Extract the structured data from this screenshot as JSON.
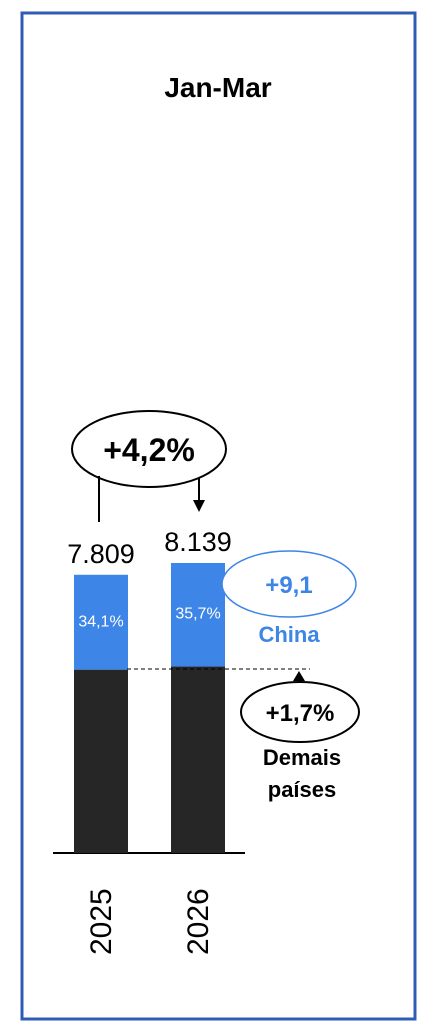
{
  "chart_data": {
    "type": "bar",
    "title": "Jan-Mar",
    "categories": [
      "2025",
      "2026"
    ],
    "totals": [
      7809,
      8139
    ],
    "total_labels": [
      "7.809",
      "8.139"
    ],
    "series": [
      {
        "name": "Demais países",
        "values": [
          5146,
          5233
        ],
        "color": "#262626"
      },
      {
        "name": "China",
        "values": [
          2663,
          2906
        ],
        "share_labels": [
          "34,1%",
          "35,7%"
        ],
        "color": "#3d85e6"
      }
    ],
    "annotations": {
      "total_growth": "+4,2%",
      "china_growth": "+9,1",
      "china_label": "China",
      "others_growth": "+1,7%",
      "others_label_line1": "Demais",
      "others_label_line2": "países"
    },
    "ylim": [
      0,
      8139
    ],
    "grid": false
  },
  "colors": {
    "frame": "#2f5bb7",
    "accent": "#3d85e6",
    "dark": "#262626"
  }
}
